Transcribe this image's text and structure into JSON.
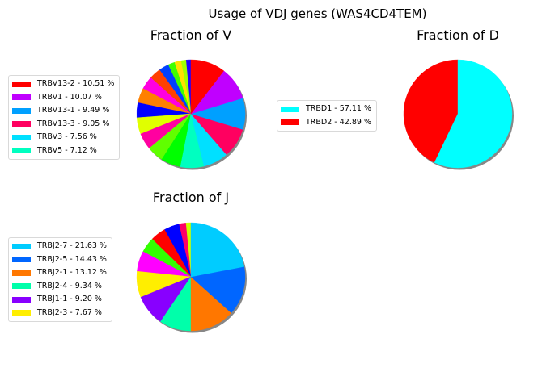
{
  "chart_data": {
    "suptitle": "Usage of VDJ genes (WAS4CD4TEM)",
    "panels": [
      {
        "type": "pie",
        "key": "v",
        "title": "Fraction of V",
        "legend_placement": "left",
        "legend": [
          {
            "label": "TRBV13-2 - 10.51 %",
            "color": "#ff0000"
          },
          {
            "label": "TRBV1 - 10.07 %",
            "color": "#c000ff"
          },
          {
            "label": "TRBV13-1 - 9.49 %",
            "color": "#00a0ff"
          },
          {
            "label": "TRBV13-3 - 9.05 %",
            "color": "#ff0060"
          },
          {
            "label": "TRBV3 - 7.56 %",
            "color": "#00e0ff"
          },
          {
            "label": "TRBV5 - 7.12 %",
            "color": "#00ffc0"
          }
        ],
        "slices": [
          {
            "value": 1.5,
            "color": "#2000ff"
          },
          {
            "value": 1.5,
            "color": "#a0ff00"
          },
          {
            "value": 2.0,
            "color": "#ffe000"
          },
          {
            "value": 2.0,
            "color": "#40ff00"
          },
          {
            "value": 3.0,
            "color": "#0040ff"
          },
          {
            "value": 3.5,
            "color": "#ff4000"
          },
          {
            "value": 4.0,
            "color": "#ff00e0"
          },
          {
            "value": 4.5,
            "color": "#ff8000"
          },
          {
            "value": 4.5,
            "color": "#0000ff"
          },
          {
            "value": 5.0,
            "color": "#e0ff00"
          },
          {
            "value": 5.0,
            "color": "#ff00a0"
          },
          {
            "value": 5.0,
            "color": "#60ff00"
          },
          {
            "value": 6.0,
            "color": "#00ff00"
          },
          {
            "value": 7.12,
            "color": "#00ffc0"
          },
          {
            "value": 7.56,
            "color": "#00e0ff"
          },
          {
            "value": 9.05,
            "color": "#ff0060"
          },
          {
            "value": 9.49,
            "color": "#00a0ff"
          },
          {
            "value": 10.07,
            "color": "#c000ff"
          },
          {
            "value": 10.51,
            "color": "#ff0000"
          }
        ]
      },
      {
        "type": "pie",
        "key": "d",
        "title": "Fraction of D",
        "legend_placement": "left",
        "legend": [
          {
            "label": "TRBD1 - 57.11 %",
            "color": "#00ffff"
          },
          {
            "label": "TRBD2 - 42.89 %",
            "color": "#ff0000"
          }
        ],
        "slices": [
          {
            "value": 42.89,
            "color": "#ff0000"
          },
          {
            "value": 57.11,
            "color": "#00ffff"
          }
        ]
      },
      {
        "type": "pie",
        "key": "j",
        "title": "Fraction of J",
        "legend_placement": "left",
        "legend": [
          {
            "label": "TRBJ2-7 - 21.63 %",
            "color": "#00ccff"
          },
          {
            "label": "TRBJ2-5 - 14.43 %",
            "color": "#0066ff"
          },
          {
            "label": "TRBJ2-1 - 13.12 %",
            "color": "#ff7700"
          },
          {
            "label": "TRBJ2-4 - 9.34 %",
            "color": "#00ffaa"
          },
          {
            "label": "TRBJ1-1 - 9.20 %",
            "color": "#8800ff"
          },
          {
            "label": "TRBJ2-3 - 7.67 %",
            "color": "#ffee00"
          }
        ],
        "slices": [
          {
            "value": 1.5,
            "color": "#ccff00"
          },
          {
            "value": 2.0,
            "color": "#ff0066"
          },
          {
            "value": 4.5,
            "color": "#0000ff"
          },
          {
            "value": 4.5,
            "color": "#ff0000"
          },
          {
            "value": 4.5,
            "color": "#33ff00"
          },
          {
            "value": 6.0,
            "color": "#ff00ff"
          },
          {
            "value": 7.67,
            "color": "#ffee00"
          },
          {
            "value": 9.2,
            "color": "#8800ff"
          },
          {
            "value": 9.34,
            "color": "#00ffaa"
          },
          {
            "value": 13.12,
            "color": "#ff7700"
          },
          {
            "value": 14.43,
            "color": "#0066ff"
          },
          {
            "value": 21.63,
            "color": "#00ccff"
          }
        ]
      }
    ]
  }
}
